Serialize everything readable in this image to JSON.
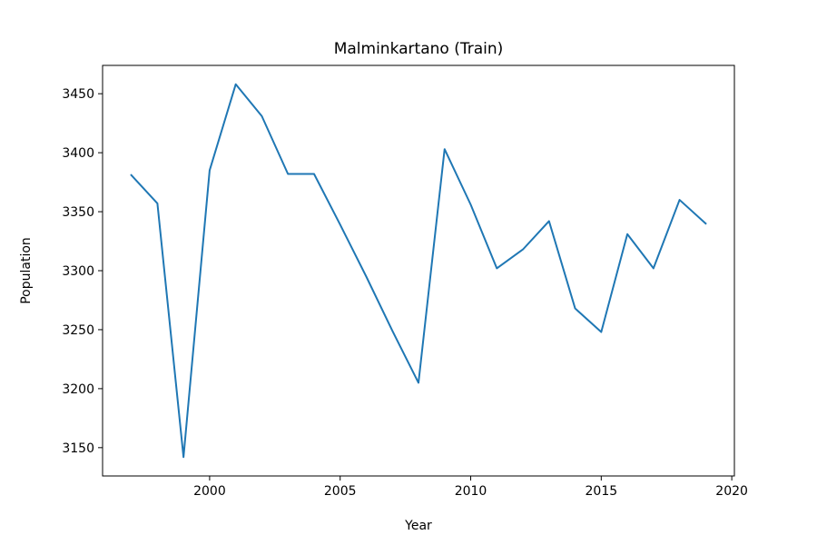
{
  "chart_data": {
    "type": "line",
    "title": "Malminkartano (Train)",
    "xlabel": "Year",
    "ylabel": "Population",
    "xlim": [
      1995.9,
      2020.1
    ],
    "ylim": [
      3126,
      3474
    ],
    "xticks": [
      2000,
      2005,
      2010,
      2015,
      2020
    ],
    "yticks": [
      3150,
      3200,
      3250,
      3300,
      3350,
      3400,
      3450
    ],
    "grid": false,
    "legend": "none",
    "series": [
      {
        "color": "#1f77b4",
        "x": [
          1997,
          1998,
          1999,
          2000,
          2001,
          2002,
          2003,
          2004,
          2005,
          2006,
          2007,
          2008,
          2009,
          2010,
          2011,
          2012,
          2013,
          2014,
          2015,
          2016,
          2017,
          2018,
          2019
        ],
        "y": [
          3381,
          3357,
          3142,
          3385,
          3458,
          3431,
          3382,
          3382,
          3339,
          3295,
          3249,
          3205,
          3403,
          3356,
          3302,
          3318,
          3342,
          3268,
          3248,
          3331,
          3302,
          3360,
          3340
        ]
      }
    ]
  }
}
